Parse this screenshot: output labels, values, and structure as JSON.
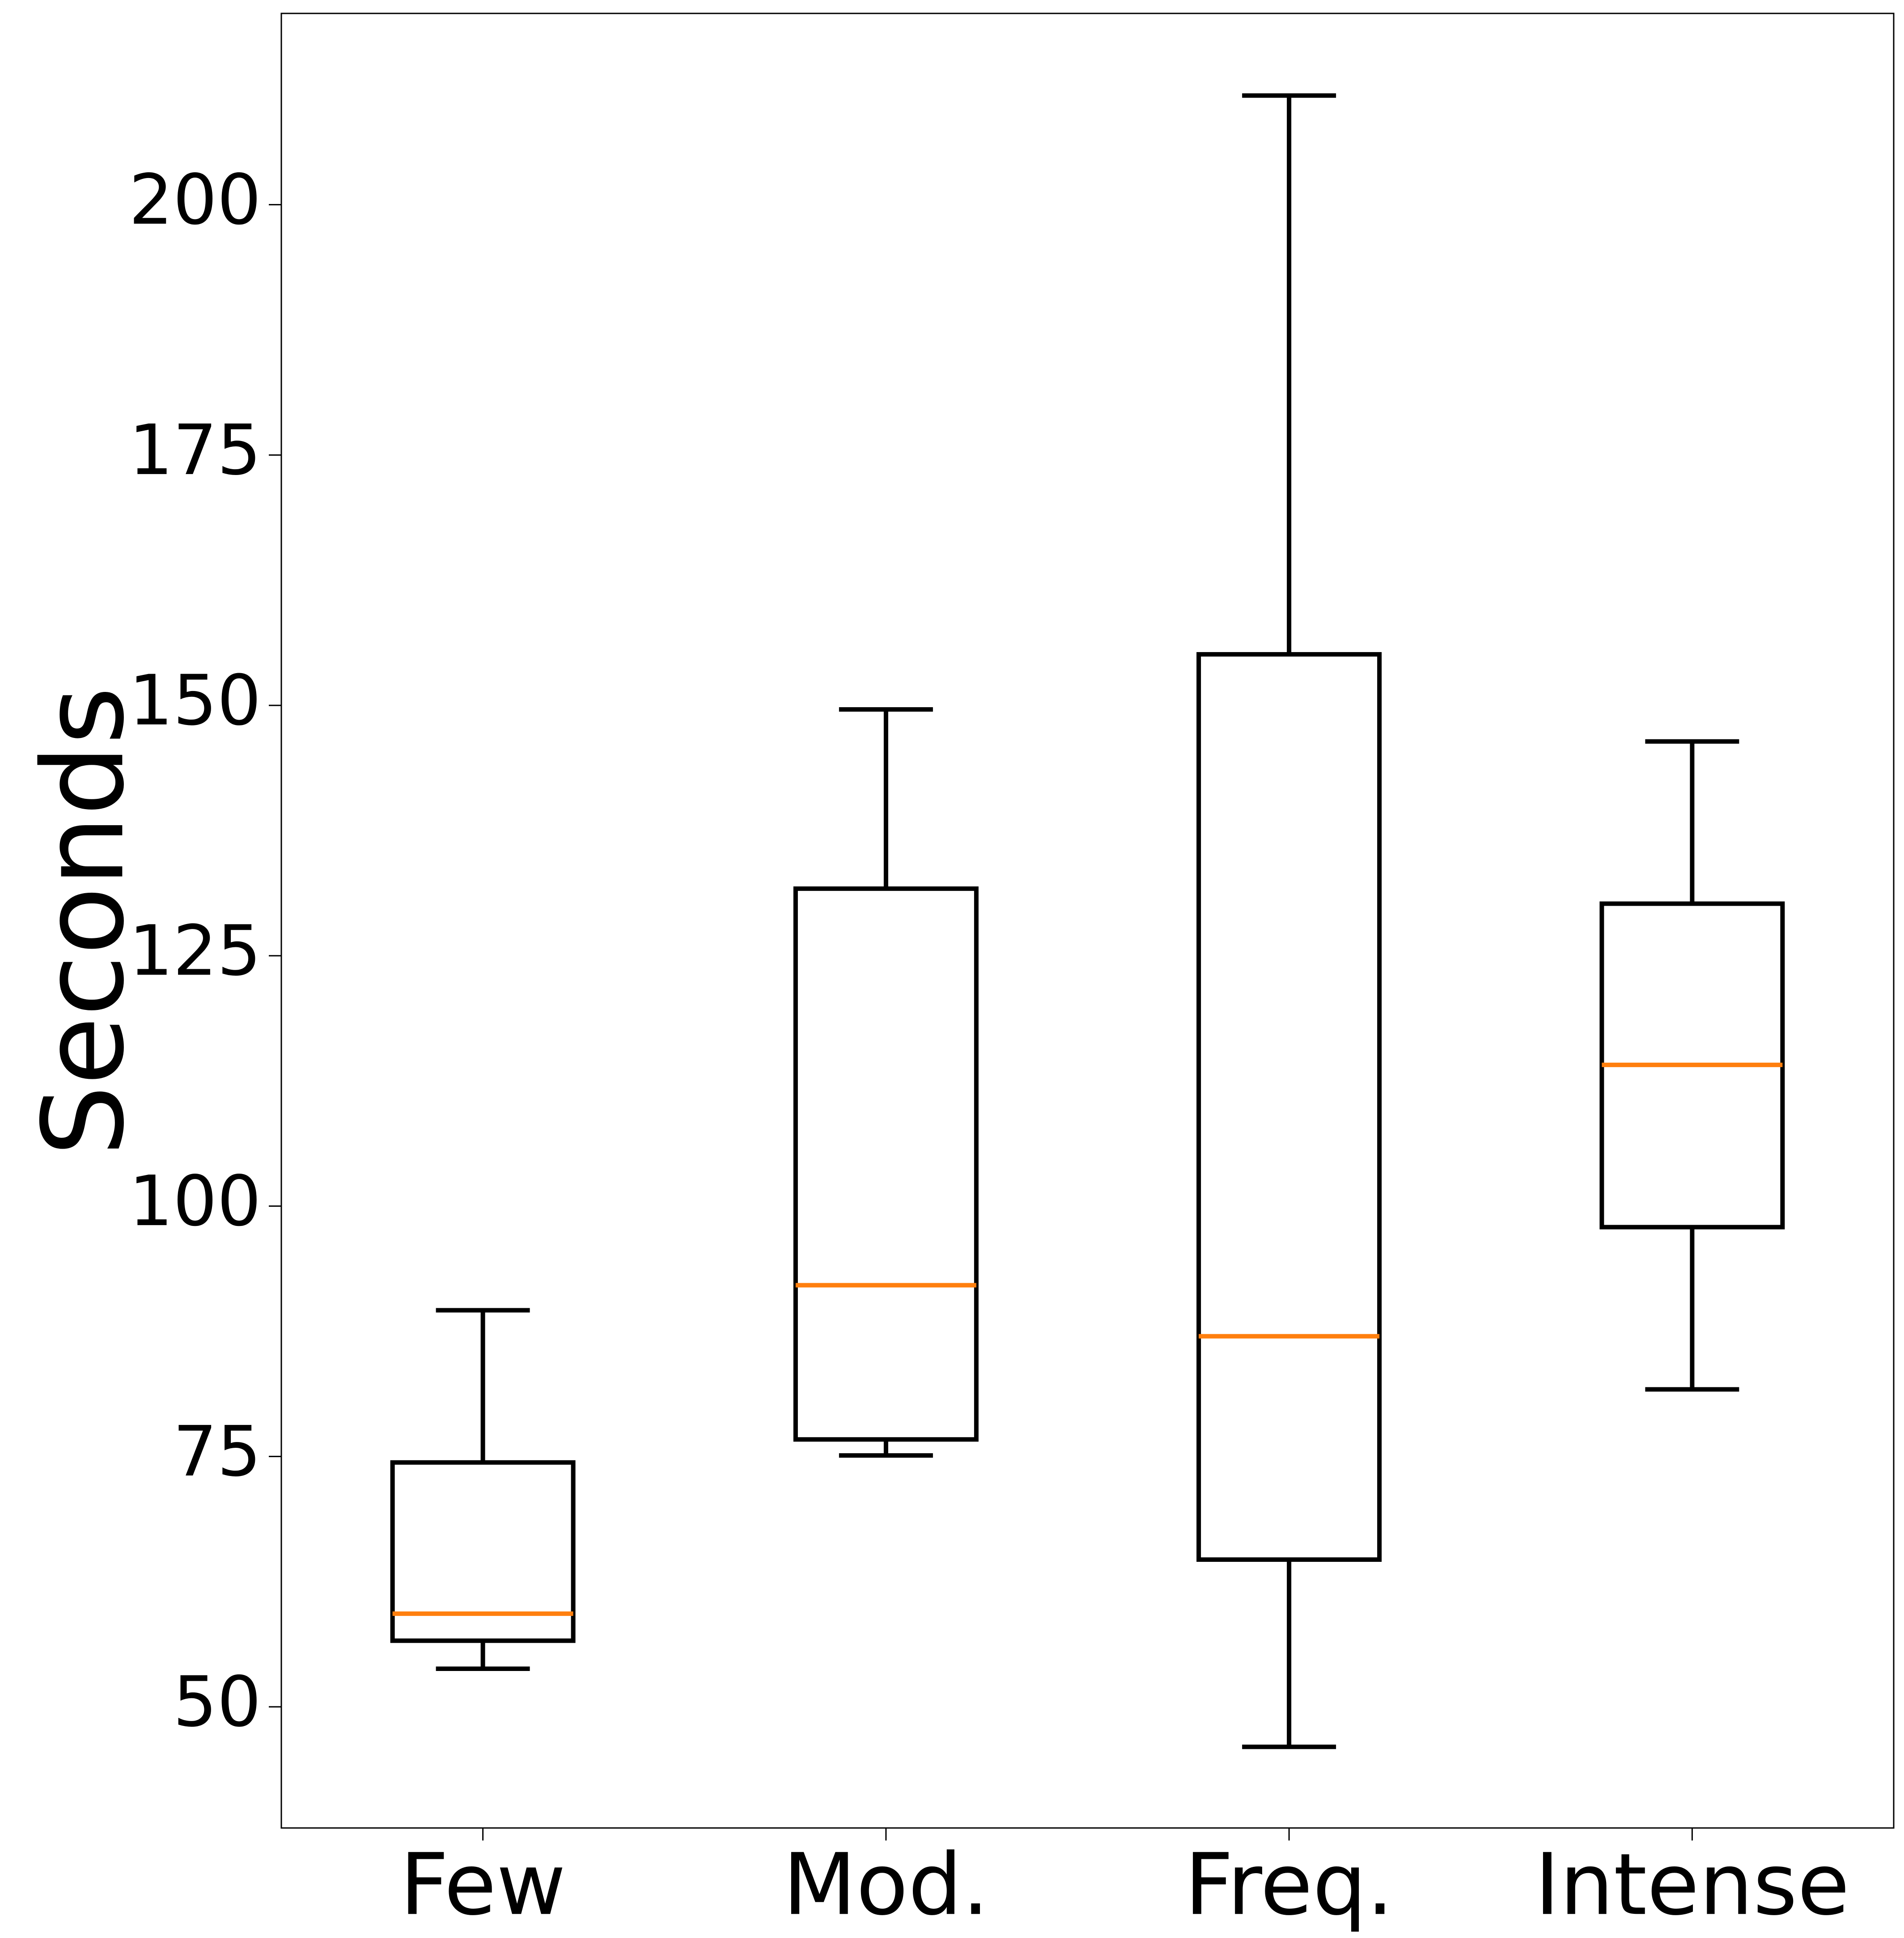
{
  "chart_data": {
    "type": "box",
    "y_label": "Seconds",
    "categories": [
      "Few",
      "Mod.",
      "Freq.",
      "Intense"
    ],
    "whisker_low": [
      53.8,
      75.1,
      46.0,
      81.7
    ],
    "q1": [
      56.6,
      76.7,
      64.7,
      97.9
    ],
    "median": [
      59.3,
      92.1,
      87.0,
      114.1
    ],
    "q3": [
      74.4,
      131.7,
      155.1,
      130.2
    ],
    "whisker_high": [
      89.6,
      149.6,
      210.9,
      146.4
    ],
    "box_color": "#000000",
    "median_color": "#ff7f0e",
    "ylim": [
      37.9,
      219.1
    ],
    "yticks": [
      50,
      75,
      100,
      125,
      150,
      175,
      200
    ],
    "grid": false
  }
}
